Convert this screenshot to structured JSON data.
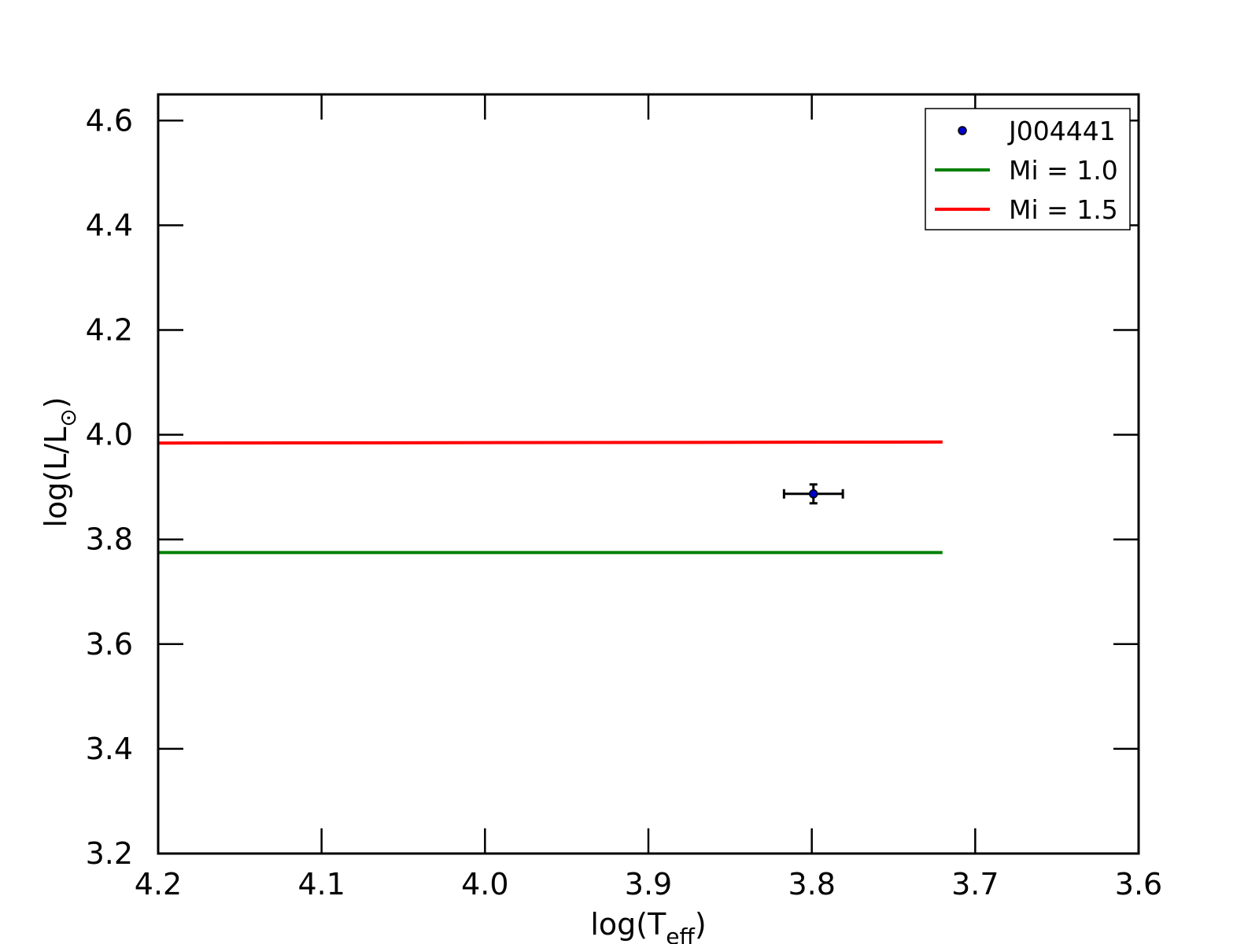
{
  "chart_data": {
    "type": "line",
    "title": "",
    "xlabel": {
      "base": "log(T",
      "sub": "eff",
      "end": ")"
    },
    "ylabel": {
      "base": "log(L/L",
      "sub": "⊙",
      "end": ")"
    },
    "xlim": [
      4.2,
      3.6
    ],
    "ylim": [
      3.2,
      4.65
    ],
    "x_inverted": true,
    "xticks": [
      4.2,
      4.1,
      4.0,
      3.9,
      3.8,
      3.7,
      3.6
    ],
    "xtick_labels": [
      "4.2",
      "4.1",
      "4.0",
      "3.9",
      "3.8",
      "3.7",
      "3.6"
    ],
    "yticks": [
      3.2,
      3.4,
      3.6,
      3.8,
      4.0,
      4.2,
      4.4,
      4.6
    ],
    "ytick_labels": [
      "3.2",
      "3.4",
      "3.6",
      "3.8",
      "4.0",
      "4.2",
      "4.4",
      "4.6"
    ],
    "grid": false,
    "legend_position": "top-right",
    "series": [
      {
        "name": "J004441",
        "kind": "point",
        "color": "#0000cc",
        "points": [
          {
            "x": 3.799,
            "y": 3.887,
            "xerr": 0.018,
            "yerr": 0.018
          }
        ]
      },
      {
        "name": "Mi = 1.0",
        "kind": "line",
        "color": "#008000",
        "points": [
          {
            "x": 4.2,
            "y": 3.775
          },
          {
            "x": 3.72,
            "y": 3.775
          }
        ]
      },
      {
        "name": "Mi = 1.5",
        "kind": "line",
        "color": "#ff0000",
        "points": [
          {
            "x": 4.2,
            "y": 3.984
          },
          {
            "x": 3.72,
            "y": 3.986
          }
        ]
      }
    ]
  }
}
